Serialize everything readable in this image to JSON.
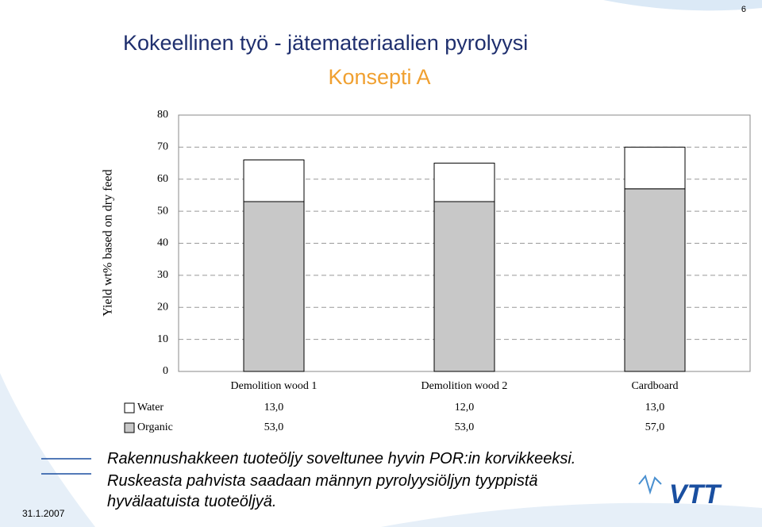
{
  "page_number": "6",
  "date": "31.1.2007",
  "logo": "VTT",
  "notes": [
    "Rakennushakkeen tuoteöljy soveltunee hyvin POR:in korvikkeeksi.",
    "Ruskeasta pahvista saadaan männyn pyrolyysiöljyn tyyppistä hyvälaatuista tuoteöljyä."
  ],
  "chart_data": {
    "type": "stacked_bar",
    "title": "Kokeellinen työ - jätemateriaalien pyrolyysi",
    "subtitle": "Konsepti A",
    "y_label": "Yield wt% based on dry feed",
    "categories": [
      "Demolition wood 1",
      "Demolition wood 2",
      "Cardboard"
    ],
    "series": [
      {
        "name": "Water",
        "color": "#ffffff",
        "values": [
          13,
          12,
          13
        ],
        "value_labels": [
          "13,0",
          "12,0",
          "13,0"
        ]
      },
      {
        "name": "Organic",
        "color": "#c8c8c8",
        "values": [
          53,
          53,
          57
        ],
        "value_labels": [
          "53,0",
          "53,0",
          "57,0"
        ]
      }
    ],
    "ylim": [
      0,
      80
    ],
    "yticks": [
      0,
      10,
      20,
      30,
      40,
      50,
      60,
      70,
      80
    ],
    "grid": true
  }
}
